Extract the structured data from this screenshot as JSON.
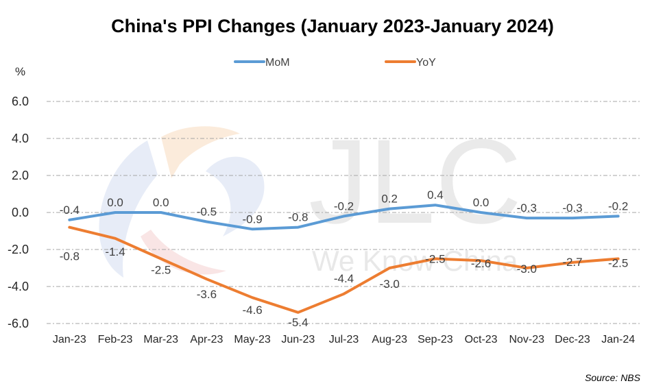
{
  "chart_data": {
    "type": "line",
    "title": "China's PPI Changes (January 2023-January 2024)",
    "ylabel": "%",
    "categories": [
      "Jan-23",
      "Feb-23",
      "Mar-23",
      "Apr-23",
      "May-23",
      "Jun-23",
      "Jul-23",
      "Aug-23",
      "Sep-23",
      "Oct-23",
      "Nov-23",
      "Dec-23",
      "Jan-24"
    ],
    "ylim": [
      -6.0,
      6.0
    ],
    "yticks": [
      6.0,
      4.0,
      2.0,
      0.0,
      -2.0,
      -4.0,
      -6.0
    ],
    "grid": true,
    "legend_position": "top",
    "series": [
      {
        "name": "MoM",
        "color": "#5b9bd5",
        "values": [
          -0.4,
          0.0,
          0.0,
          -0.5,
          -0.9,
          -0.8,
          -0.2,
          0.2,
          0.4,
          0.0,
          -0.3,
          -0.3,
          -0.2
        ],
        "labels": [
          "-0.4",
          "0.0",
          "0.0",
          "-0.5",
          "-0.9",
          "-0.8",
          "-0.2",
          "0.2",
          "0.4",
          "0.0",
          "-0.3",
          "-0.3",
          "-0.2"
        ]
      },
      {
        "name": "YoY",
        "color": "#ed7d31",
        "values": [
          -0.8,
          -1.4,
          -2.5,
          -3.6,
          -4.6,
          -5.4,
          -4.4,
          -3.0,
          -2.5,
          -2.6,
          -3.0,
          -2.7,
          -2.5
        ],
        "labels": [
          "-0.8",
          "-1.4",
          "-2.5",
          "-3.6",
          "-4.6",
          "-5.4",
          "-4.4",
          "-3.0",
          "-2.5",
          "-2.6",
          "-3.0",
          "-2.7",
          "-2.5"
        ]
      }
    ]
  },
  "watermark": {
    "logo_text": "JLC",
    "tagline": "We Know China"
  },
  "source": "Source: NBS"
}
